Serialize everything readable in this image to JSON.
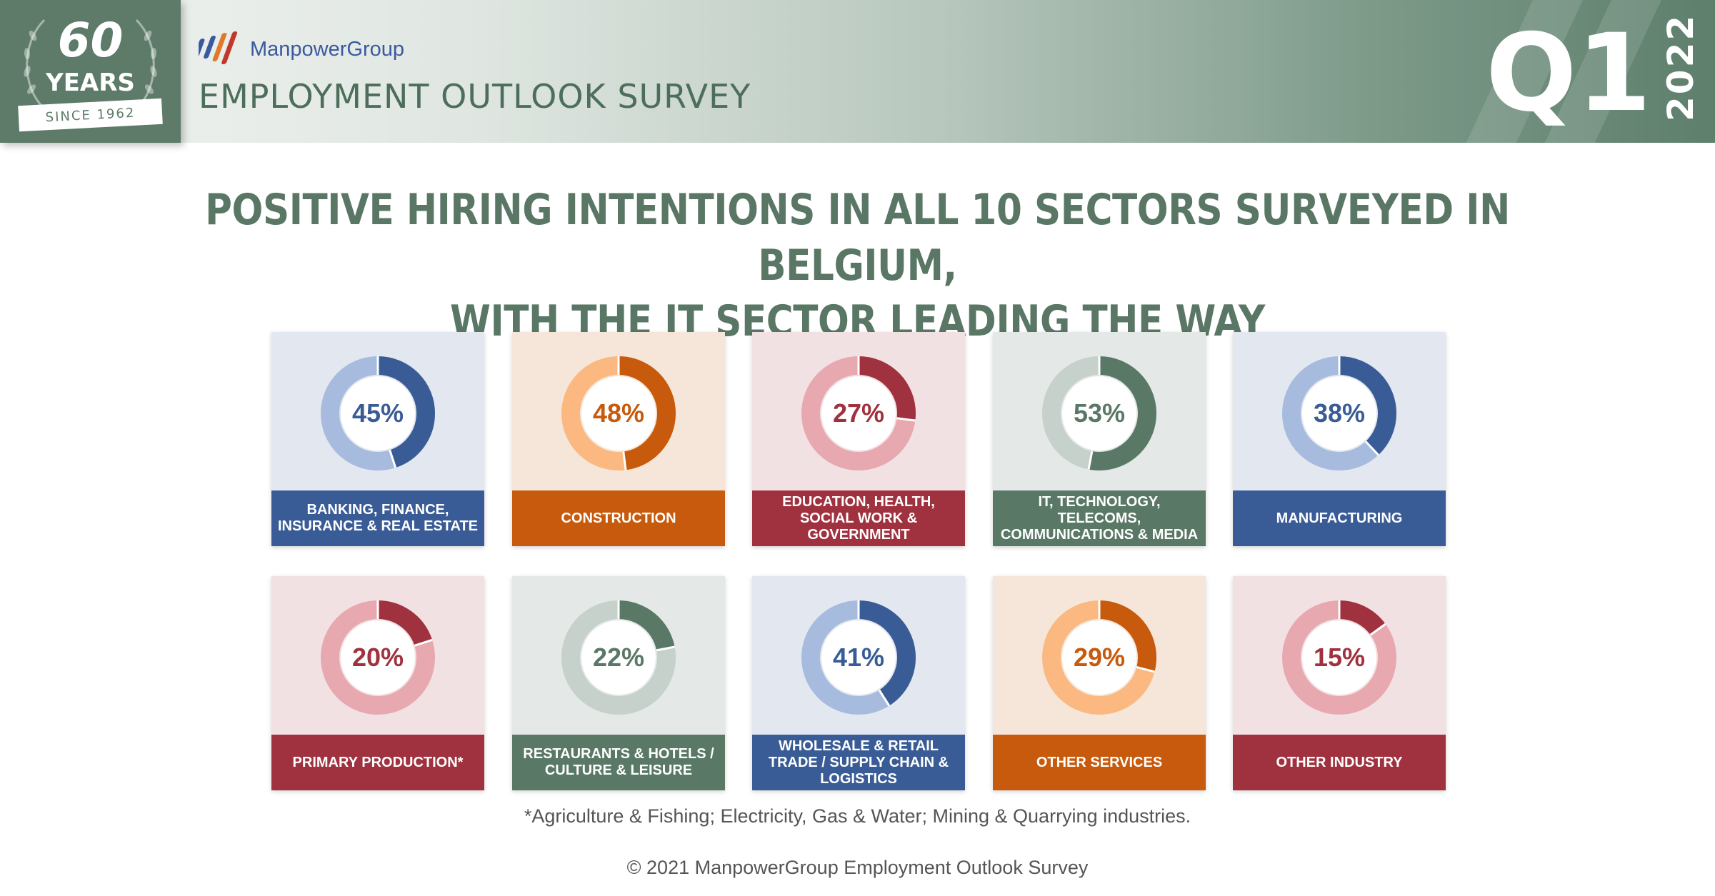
{
  "badge": {
    "number": "60",
    "label": "YEARS",
    "since": "SINCE 1962"
  },
  "header": {
    "brand": "ManpowerGroup",
    "survey_title": "EMPLOYMENT OUTLOOK SURVEY",
    "quarter": "Q1",
    "year": "2022"
  },
  "headline": {
    "line1": "POSITIVE HIRING INTENTIONS IN ALL 10 SECTORS SURVEYED IN BELGIUM,",
    "line2": "WITH THE IT SECTOR LEADING THE WAY"
  },
  "chart_data": {
    "type": "pie",
    "title": "POSITIVE HIRING INTENTIONS IN ALL 10 SECTORS SURVEYED IN BELGIUM, WITH THE IT SECTOR LEADING THE WAY",
    "categories": [
      "BANKING, FINANCE, INSURANCE & REAL ESTATE",
      "CONSTRUCTION",
      "EDUCATION, HEALTH, SOCIAL WORK & GOVERNMENT",
      "IT, TECHNOLOGY, TELECOMS, COMMUNICATIONS & MEDIA",
      "MANUFACTURING",
      "PRIMARY PRODUCTION*",
      "RESTAURANTS & HOTELS / CULTURE & LEISURE",
      "WHOLESALE & RETAIL TRADE / SUPPLY CHAIN & LOGISTICS",
      "OTHER SERVICES",
      "OTHER INDUSTRY"
    ],
    "values": [
      45,
      48,
      27,
      53,
      38,
      20,
      22,
      41,
      29,
      15
    ],
    "unit": "%"
  },
  "sectors": [
    {
      "label": "BANKING, FINANCE,\nINSURANCE & REAL ESTATE",
      "pct_text": "45%",
      "value": 45,
      "colors": {
        "bg": "#e3e7ef",
        "dark": "#3a5c96",
        "light": "#a6bbde"
      }
    },
    {
      "label": "CONSTRUCTION",
      "pct_text": "48%",
      "value": 48,
      "colors": {
        "bg": "#f6e6d9",
        "dark": "#c75a0c",
        "light": "#fbb981"
      }
    },
    {
      "label": "EDUCATION, HEALTH,\nSOCIAL WORK &\nGOVERNMENT",
      "pct_text": "27%",
      "value": 27,
      "colors": {
        "bg": "#f2e1e2",
        "dark": "#a0323f",
        "light": "#e8a8b0"
      }
    },
    {
      "label": "IT, TECHNOLOGY,\nTELECOMS,\nCOMMUNICATIONS & MEDIA",
      "pct_text": "53%",
      "value": 53,
      "colors": {
        "bg": "#e4e8e6",
        "dark": "#5a7866",
        "light": "#c5d1ca"
      }
    },
    {
      "label": "MANUFACTURING",
      "pct_text": "38%",
      "value": 38,
      "colors": {
        "bg": "#e3e7ef",
        "dark": "#3a5c96",
        "light": "#a6bbde"
      }
    },
    {
      "label": "PRIMARY PRODUCTION*",
      "pct_text": "20%",
      "value": 20,
      "colors": {
        "bg": "#f2e1e2",
        "dark": "#a0323f",
        "light": "#e8a8b0"
      }
    },
    {
      "label": "RESTAURANTS & HOTELS /\nCULTURE & LEISURE",
      "pct_text": "22%",
      "value": 22,
      "colors": {
        "bg": "#e4e8e6",
        "dark": "#5a7866",
        "light": "#c5d1ca"
      }
    },
    {
      "label": "WHOLESALE & RETAIL\nTRADE / SUPPLY CHAIN &\nLOGISTICS",
      "pct_text": "41%",
      "value": 41,
      "colors": {
        "bg": "#e3e7ef",
        "dark": "#3a5c96",
        "light": "#a6bbde"
      }
    },
    {
      "label": "OTHER SERVICES",
      "pct_text": "29%",
      "value": 29,
      "colors": {
        "bg": "#f6e6d9",
        "dark": "#c75a0c",
        "light": "#fbb981"
      }
    },
    {
      "label": "OTHER INDUSTRY",
      "pct_text": "15%",
      "value": 15,
      "colors": {
        "bg": "#f2e1e2",
        "dark": "#a0323f",
        "light": "#e8a8b0"
      }
    }
  ],
  "footnote": "*Agriculture & Fishing; Electricity, Gas & Water; Mining & Quarrying industries.",
  "copyright": "© 2021 ManpowerGroup Employment Outlook Survey"
}
